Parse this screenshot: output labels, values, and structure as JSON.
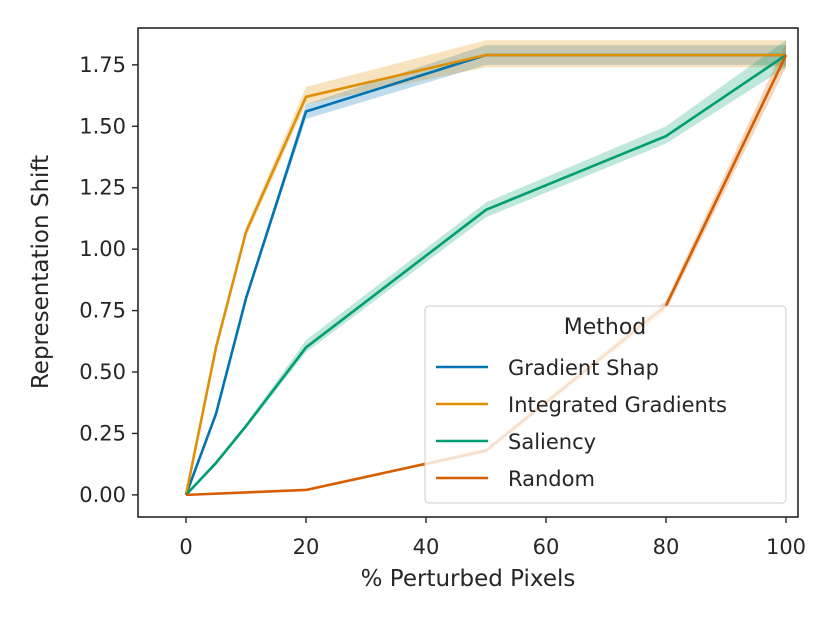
{
  "chart_data": {
    "type": "line",
    "title": "",
    "xlabel": "% Perturbed Pixels",
    "ylabel": "Representation Shift",
    "xlim": [
      -8,
      102
    ],
    "ylim": [
      -0.09,
      1.9
    ],
    "xticks": [
      0,
      20,
      40,
      60,
      80,
      100
    ],
    "yticks": [
      0.0,
      0.25,
      0.5,
      0.75,
      1.0,
      1.25,
      1.5,
      1.75
    ],
    "xtick_labels": [
      "0",
      "20",
      "40",
      "60",
      "80",
      "100"
    ],
    "ytick_labels": [
      "0.00",
      "0.25",
      "0.50",
      "0.75",
      "1.00",
      "1.25",
      "1.50",
      "1.75"
    ],
    "grid": false,
    "legend": {
      "title": "Method",
      "placement": "lower-right"
    },
    "series": [
      {
        "name": "Gradient Shap",
        "color": "#0173b2",
        "x": [
          0,
          5,
          10,
          20,
          50,
          80,
          100
        ],
        "y": [
          0.0,
          0.33,
          0.8,
          1.56,
          1.79,
          1.79,
          1.79
        ],
        "ci_low": [
          0.0,
          0.32,
          0.79,
          1.53,
          1.75,
          1.75,
          1.75
        ],
        "ci_high": [
          0.0,
          0.34,
          0.81,
          1.59,
          1.83,
          1.83,
          1.83
        ]
      },
      {
        "name": "Integrated Gradients",
        "color": "#de8f05",
        "x": [
          0,
          5,
          10,
          20,
          50,
          80,
          100
        ],
        "y": [
          0.0,
          0.6,
          1.07,
          1.62,
          1.79,
          1.79,
          1.79
        ],
        "ci_low": [
          0.0,
          0.59,
          1.05,
          1.59,
          1.74,
          1.74,
          1.74
        ],
        "ci_high": [
          0.0,
          0.61,
          1.09,
          1.66,
          1.85,
          1.85,
          1.85
        ]
      },
      {
        "name": "Saliency",
        "color": "#029e73",
        "x": [
          0,
          5,
          10,
          20,
          50,
          80,
          100
        ],
        "y": [
          0.0,
          0.13,
          0.28,
          0.6,
          1.16,
          1.46,
          1.79
        ],
        "ci_low": [
          0.0,
          0.12,
          0.27,
          0.58,
          1.13,
          1.43,
          1.74
        ],
        "ci_high": [
          0.0,
          0.14,
          0.29,
          0.63,
          1.19,
          1.5,
          1.85
        ]
      },
      {
        "name": "Random",
        "color": "#d55e00",
        "x": [
          0,
          10,
          20,
          50,
          80,
          100
        ],
        "y": [
          0.0,
          0.01,
          0.02,
          0.18,
          0.77,
          1.79
        ],
        "ci_low": [
          0.0,
          0.01,
          0.02,
          0.17,
          0.75,
          1.74
        ],
        "ci_high": [
          0.0,
          0.01,
          0.02,
          0.19,
          0.79,
          1.84
        ]
      }
    ]
  }
}
